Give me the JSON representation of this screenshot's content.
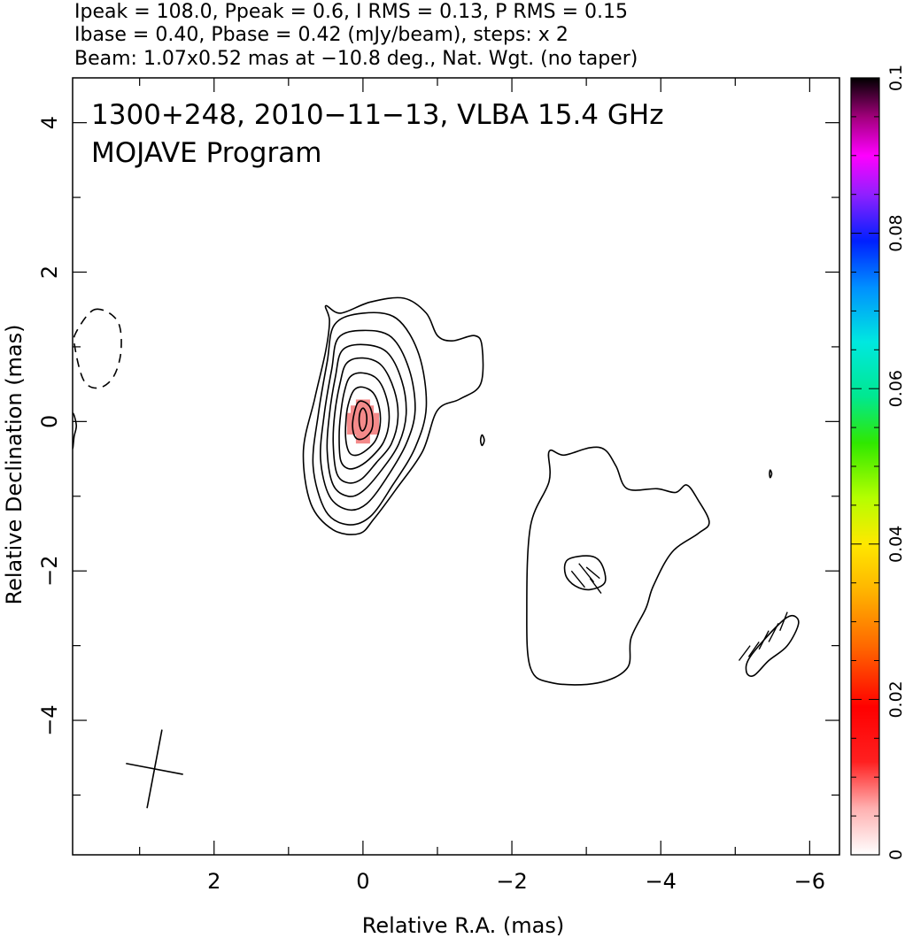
{
  "header": {
    "line1": "Ipeak = 108.0, Ppeak = 0.6, I RMS = 0.13, P RMS = 0.15",
    "line2": "Ibase = 0.40, Pbase = 0.42 (mJy/beam), steps: x 2",
    "line3": "Beam: 1.07x0.52 mas at −10.8 deg., Nat. Wgt. (no taper)"
  },
  "chart_data": {
    "type": "contour",
    "annotation_line1": "1300+248, 2010−11−13, VLBA 15.4 GHz",
    "annotation_line2": "MOJAVE Program",
    "xlabel": "Relative R.A. (mas)",
    "ylabel": "Relative Declination (mas)",
    "xlim": [
      3.9,
      -6.4
    ],
    "ylim": [
      -5.8,
      4.6
    ],
    "x_ticks": [
      2,
      0,
      -2,
      -4,
      -6
    ],
    "x_tick_labels": [
      "2",
      "0",
      "−2",
      "−4",
      "−6"
    ],
    "y_ticks": [
      4,
      2,
      0,
      -2,
      -4
    ],
    "y_tick_labels": [
      "4",
      "2",
      "0",
      "−2",
      "−4"
    ],
    "colorbar": {
      "range": [
        0,
        0.1
      ],
      "ticks": [
        0,
        0.02,
        0.04,
        0.06,
        0.08,
        0.1
      ],
      "tick_labels": [
        "0",
        "0.02",
        "0.04",
        "0.06",
        "0.08",
        "0.1"
      ]
    },
    "beam": {
      "major_mas": 1.07,
      "minor_mas": 0.52,
      "pa_deg": -10.8,
      "center": [
        2.8,
        -4.65
      ]
    },
    "core": {
      "x": 0.0,
      "y": 0.0
    },
    "polarized_flux_patch": {
      "center": [
        0.0,
        0.0
      ],
      "color": "#f48a8a"
    },
    "contours": [
      {
        "name": "core-contour-1",
        "dashed": false,
        "points": [
          [
            0.5,
            1.55
          ],
          [
            0.3,
            1.45
          ],
          [
            -0.1,
            1.6
          ],
          [
            -0.55,
            1.65
          ],
          [
            -0.85,
            1.45
          ],
          [
            -1.0,
            1.15
          ],
          [
            -1.2,
            1.08
          ],
          [
            -1.5,
            1.15
          ],
          [
            -1.6,
            1.0
          ],
          [
            -1.58,
            0.5
          ],
          [
            -1.3,
            0.3
          ],
          [
            -1.0,
            0.15
          ],
          [
            -0.8,
            -0.4
          ],
          [
            -0.45,
            -0.9
          ],
          [
            -0.15,
            -1.3
          ],
          [
            0.05,
            -1.5
          ],
          [
            0.4,
            -1.45
          ],
          [
            0.7,
            -1.1
          ],
          [
            0.8,
            -0.4
          ],
          [
            0.65,
            0.3
          ],
          [
            0.5,
            0.95
          ],
          [
            0.45,
            1.35
          ]
        ]
      },
      {
        "name": "core-contour-2",
        "dashed": false,
        "points": [
          [
            0.38,
            1.3
          ],
          [
            0.0,
            1.45
          ],
          [
            -0.45,
            1.38
          ],
          [
            -0.75,
            0.9
          ],
          [
            -0.85,
            0.2
          ],
          [
            -0.7,
            -0.35
          ],
          [
            -0.4,
            -0.85
          ],
          [
            -0.1,
            -1.27
          ],
          [
            0.2,
            -1.38
          ],
          [
            0.5,
            -1.2
          ],
          [
            0.67,
            -0.6
          ],
          [
            0.6,
            0.1
          ],
          [
            0.48,
            0.8
          ]
        ]
      },
      {
        "name": "core-contour-3",
        "dashed": false,
        "points": [
          [
            0.33,
            1.12
          ],
          [
            0.0,
            1.22
          ],
          [
            -0.38,
            1.13
          ],
          [
            -0.62,
            0.7
          ],
          [
            -0.7,
            0.15
          ],
          [
            -0.58,
            -0.3
          ],
          [
            -0.32,
            -0.75
          ],
          [
            -0.05,
            -1.1
          ],
          [
            0.2,
            -1.18
          ],
          [
            0.45,
            -1.0
          ],
          [
            0.57,
            -0.5
          ],
          [
            0.52,
            0.1
          ],
          [
            0.42,
            0.7
          ]
        ]
      },
      {
        "name": "core-contour-4",
        "dashed": false,
        "points": [
          [
            0.28,
            0.95
          ],
          [
            0.0,
            1.03
          ],
          [
            -0.32,
            0.93
          ],
          [
            -0.52,
            0.55
          ],
          [
            -0.58,
            0.1
          ],
          [
            -0.48,
            -0.3
          ],
          [
            -0.25,
            -0.65
          ],
          [
            0.0,
            -0.93
          ],
          [
            0.2,
            -1.0
          ],
          [
            0.4,
            -0.85
          ],
          [
            0.48,
            -0.4
          ],
          [
            0.45,
            0.1
          ],
          [
            0.37,
            0.6
          ]
        ]
      },
      {
        "name": "core-contour-5",
        "dashed": false,
        "points": [
          [
            0.22,
            0.78
          ],
          [
            0.0,
            0.85
          ],
          [
            -0.25,
            0.75
          ],
          [
            -0.42,
            0.42
          ],
          [
            -0.47,
            0.05
          ],
          [
            -0.38,
            -0.3
          ],
          [
            -0.18,
            -0.55
          ],
          [
            0.02,
            -0.77
          ],
          [
            0.2,
            -0.82
          ],
          [
            0.35,
            -0.7
          ],
          [
            0.4,
            -0.3
          ],
          [
            0.38,
            0.1
          ],
          [
            0.31,
            0.5
          ]
        ]
      },
      {
        "name": "core-contour-6",
        "dashed": false,
        "points": [
          [
            0.17,
            0.6
          ],
          [
            0.0,
            0.65
          ],
          [
            -0.2,
            0.56
          ],
          [
            -0.32,
            0.3
          ],
          [
            -0.35,
            0.0
          ],
          [
            -0.28,
            -0.27
          ],
          [
            -0.12,
            -0.47
          ],
          [
            0.05,
            -0.6
          ],
          [
            0.2,
            -0.63
          ],
          [
            0.3,
            -0.52
          ],
          [
            0.32,
            -0.2
          ],
          [
            0.3,
            0.1
          ],
          [
            0.25,
            0.4
          ]
        ]
      },
      {
        "name": "core-contour-7",
        "dashed": false,
        "points": [
          [
            0.12,
            0.42
          ],
          [
            0.0,
            0.46
          ],
          [
            -0.14,
            0.38
          ],
          [
            -0.22,
            0.18
          ],
          [
            -0.23,
            -0.05
          ],
          [
            -0.17,
            -0.25
          ],
          [
            -0.05,
            -0.38
          ],
          [
            0.08,
            -0.45
          ],
          [
            0.18,
            -0.42
          ],
          [
            0.23,
            -0.25
          ],
          [
            0.23,
            0.0
          ],
          [
            0.2,
            0.22
          ]
        ]
      },
      {
        "name": "core-contour-8",
        "dashed": false,
        "points": [
          [
            0.07,
            0.25
          ],
          [
            0.0,
            0.27
          ],
          [
            -0.09,
            0.2
          ],
          [
            -0.13,
            0.05
          ],
          [
            -0.12,
            -0.1
          ],
          [
            -0.05,
            -0.2
          ],
          [
            0.04,
            -0.24
          ],
          [
            0.11,
            -0.2
          ],
          [
            0.14,
            -0.06
          ],
          [
            0.12,
            0.1
          ]
        ]
      },
      {
        "name": "core-contour-9",
        "dashed": false,
        "points": [
          [
            0.0,
            0.18
          ],
          [
            -0.04,
            0.12
          ],
          [
            -0.05,
            0.0
          ],
          [
            -0.02,
            -0.1
          ],
          [
            0.02,
            -0.12
          ],
          [
            0.05,
            -0.02
          ],
          [
            0.04,
            0.12
          ]
        ]
      },
      {
        "name": "jet-contour-outer",
        "dashed": false,
        "points": [
          [
            -2.7,
            -0.45
          ],
          [
            -2.5,
            -0.4
          ],
          [
            -2.5,
            -0.8
          ],
          [
            -2.25,
            -1.4
          ],
          [
            -2.2,
            -2.5
          ],
          [
            -2.25,
            -3.3
          ],
          [
            -2.55,
            -3.5
          ],
          [
            -3.15,
            -3.5
          ],
          [
            -3.55,
            -3.3
          ],
          [
            -3.6,
            -2.9
          ],
          [
            -3.8,
            -2.5
          ],
          [
            -3.9,
            -2.2
          ],
          [
            -4.15,
            -1.75
          ],
          [
            -4.5,
            -1.5
          ],
          [
            -4.65,
            -1.35
          ],
          [
            -4.5,
            -1.05
          ],
          [
            -4.35,
            -0.85
          ],
          [
            -4.2,
            -0.95
          ],
          [
            -3.95,
            -0.9
          ],
          [
            -3.55,
            -0.9
          ],
          [
            -3.4,
            -0.6
          ],
          [
            -3.25,
            -0.38
          ],
          [
            -3.05,
            -0.35
          ]
        ]
      },
      {
        "name": "jet-negative-knot",
        "dashed": false,
        "points": [
          [
            -2.75,
            -1.85
          ],
          [
            -3.05,
            -1.8
          ],
          [
            -3.2,
            -1.9
          ],
          [
            -3.25,
            -2.15
          ],
          [
            -3.05,
            -2.25
          ],
          [
            -2.85,
            -2.2
          ],
          [
            -2.72,
            -2.05
          ]
        ]
      },
      {
        "name": "southwest-negative-contour",
        "dashed": false,
        "points": [
          [
            -5.2,
            -3.15
          ],
          [
            -5.55,
            -2.75
          ],
          [
            -5.75,
            -2.6
          ],
          [
            -5.85,
            -2.7
          ],
          [
            -5.7,
            -3.0
          ],
          [
            -5.45,
            -3.2
          ],
          [
            -5.25,
            -3.4
          ],
          [
            -5.15,
            -3.35
          ]
        ]
      },
      {
        "name": "east-dashed-contour",
        "dashed": true,
        "points": [
          [
            3.6,
            1.5
          ],
          [
            3.3,
            1.35
          ],
          [
            3.25,
            0.95
          ],
          [
            3.35,
            0.6
          ],
          [
            3.55,
            0.45
          ],
          [
            3.75,
            0.55
          ],
          [
            3.87,
            1.0
          ],
          [
            3.85,
            1.2
          ]
        ]
      },
      {
        "name": "east-edge-contour",
        "dashed": false,
        "points": [
          [
            3.9,
            0.1
          ],
          [
            3.85,
            -0.05
          ],
          [
            3.88,
            -0.2
          ],
          [
            3.9,
            -0.35
          ]
        ]
      },
      {
        "name": "small-contour-a",
        "dashed": false,
        "points": [
          [
            -1.6,
            -0.18
          ],
          [
            -1.63,
            -0.25
          ],
          [
            -1.6,
            -0.32
          ],
          [
            -1.58,
            -0.25
          ]
        ]
      },
      {
        "name": "small-contour-b",
        "dashed": false,
        "points": [
          [
            -5.47,
            -0.65
          ],
          [
            -5.49,
            -0.7
          ],
          [
            -5.47,
            -0.75
          ],
          [
            -5.46,
            -0.7
          ]
        ]
      }
    ],
    "hatch_segments": [
      {
        "name": "hatch-knot",
        "segments": [
          [
            [
              -2.9,
              -1.9
            ],
            [
              -3.1,
              -2.15
            ]
          ],
          [
            [
              -2.8,
              -2.0
            ],
            [
              -2.98,
              -2.22
            ]
          ],
          [
            [
              -3.0,
              -1.95
            ],
            [
              -3.18,
              -2.1
            ]
          ],
          [
            [
              -3.05,
              -2.1
            ],
            [
              -3.2,
              -2.3
            ]
          ]
        ]
      },
      {
        "name": "hatch-southwest",
        "segments": [
          [
            [
              -5.2,
              -3.0
            ],
            [
              -5.05,
              -3.2
            ]
          ],
          [
            [
              -5.32,
              -2.95
            ],
            [
              -5.18,
              -3.15
            ]
          ],
          [
            [
              -5.45,
              -2.8
            ],
            [
              -5.32,
              -3.05
            ]
          ],
          [
            [
              -5.58,
              -2.7
            ],
            [
              -5.45,
              -2.95
            ]
          ],
          [
            [
              -5.7,
              -2.55
            ],
            [
              -5.6,
              -2.8
            ]
          ]
        ]
      }
    ]
  }
}
